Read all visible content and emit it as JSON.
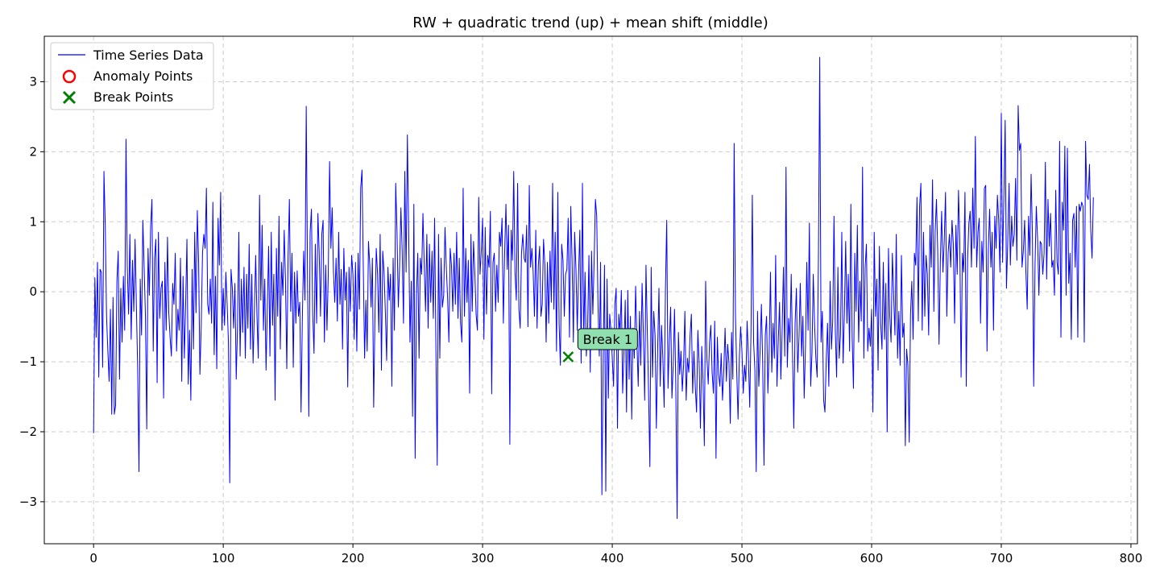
{
  "chart_data": {
    "type": "line",
    "title": "RW + quadratic trend (up) + mean shift (middle)",
    "xlabel": "",
    "ylabel": "",
    "xlim": [
      -38,
      805
    ],
    "ylim": [
      -3.6,
      3.65
    ],
    "xticks": [
      0,
      100,
      200,
      300,
      400,
      500,
      600,
      700,
      800
    ],
    "yticks": [
      -3,
      -2,
      -1,
      0,
      1,
      2,
      3
    ],
    "grid": true,
    "legend_position": "top-left",
    "series": [
      {
        "name": "Time Series Data",
        "color": "#0000ff",
        "x_start": 0,
        "x_step": 1,
        "values": [
          -2.02,
          0.2,
          -0.65,
          0.42,
          -1.22,
          0.32,
          0.28,
          -1.08,
          1.72,
          0.95,
          -0.35,
          -0.85,
          -1.28,
          -0.25,
          -1.75,
          -0.08,
          -1.75,
          -1.62,
          0.15,
          0.58,
          -1.25,
          0.05,
          -0.72,
          0.22,
          -0.55,
          2.18,
          0.35,
          -0.32,
          0.82,
          -0.68,
          0.45,
          -0.28,
          0.75,
          -0.2,
          -1.1,
          -2.57,
          0.18,
          -0.62,
          1.02,
          0.34,
          -0.35,
          -1.96,
          0.62,
          -0.05,
          0.92,
          1.32,
          -0.85,
          0.48,
          0.75,
          -1.3,
          0.85,
          -0.38,
          0.05,
          0.15,
          -1.52,
          0.42,
          -0.55,
          0.78,
          -0.3,
          -0.65,
          -0.92,
          0.12,
          -0.18,
          0.55,
          -0.85,
          -0.25,
          -0.55,
          0.48,
          -1.28,
          0.22,
          -0.95,
          -0.18,
          0.75,
          -1.32,
          -0.55,
          -1.55,
          0.32,
          -0.82,
          0.85,
          -0.3,
          1.16,
          0.42,
          -1.18,
          -0.5,
          0.55,
          0.82,
          0.62,
          1.48,
          -0.18,
          -0.32,
          0.18,
          -0.45,
          1.28,
          -0.9,
          0.22,
          -1.1,
          1.05,
          0.38,
          1.42,
          -0.55,
          0.05,
          -0.48,
          0.28,
          -0.18,
          -0.72,
          -2.73,
          0.32,
          0.05,
          -0.52,
          0.12,
          -1.25,
          -0.48,
          0.85,
          -0.92,
          0.18,
          -0.58,
          0.35,
          -0.95,
          0.25,
          -0.52,
          0.68,
          -0.82,
          0.25,
          -1.02,
          -0.28,
          0.52,
          -0.35,
          -0.95,
          1.38,
          -0.12,
          0.95,
          -0.55,
          0.18,
          -1.12,
          -0.22,
          0.65,
          -0.92,
          0.85,
          -0.48,
          0.25,
          -1.55,
          0.62,
          -0.35,
          1.08,
          -0.82,
          0.42,
          -0.05,
          0.88,
          0.15,
          -1.1,
          0.5,
          1.32,
          -0.28,
          0.55,
          -1.08,
          0.28,
          -0.45,
          0.3,
          -0.35,
          -0.15,
          -1.72,
          -0.38,
          0.58,
          -0.12,
          2.65,
          0.2,
          -1.78,
          0.85,
          1.18,
          -0.32,
          -0.88,
          0.68,
          -0.45,
          1.12,
          0.55,
          -0.35,
          0.82,
          1.02,
          -0.72,
          0.38,
          -0.55,
          0.25,
          1.86,
          0.62,
          1.2,
          0.28,
          -0.15,
          0.48,
          -0.42,
          0.85,
          -0.18,
          0.32,
          -0.82,
          0.62,
          -0.12,
          0.28,
          -1.36,
          0.35,
          -0.28,
          0.52,
          0.25,
          -0.68,
          0.42,
          -0.85,
          0.55,
          -0.25,
          1.48,
          1.74,
          0.35,
          -0.95,
          -0.12,
          -0.85,
          0.72,
          0.38,
          -0.22,
          0.48,
          -1.65,
          -0.35,
          0.62,
          0.25,
          -0.58,
          0.82,
          -1.12,
          0.58,
          0.28,
          -0.28,
          -0.98,
          0.35,
          -0.12,
          0.25,
          -1.35,
          0.48,
          -0.55,
          1.55,
          0.85,
          -0.22,
          0.38,
          1.2,
          0.58,
          -0.45,
          1.72,
          0.28,
          2.24,
          0.85,
          -0.72,
          0.15,
          -1.78,
          1.25,
          -2.38,
          -0.05,
          0.55,
          -0.95,
          0.48,
          0.25,
          1.12,
          0.38,
          -0.28,
          0.82,
          -0.52,
          0.68,
          -0.15,
          0.58,
          -0.38,
          1.05,
          -0.82,
          -2.48,
          0.82,
          -0.95,
          0.48,
          -0.22,
          -0.05,
          0.92,
          0.35,
          -0.08,
          -0.72,
          0.62,
          0.38,
          -0.28,
          0.55,
          -0.18,
          0.85,
          -0.38,
          0.48,
          -0.45,
          -0.72,
          1.48,
          -0.35,
          0.62,
          -0.15,
          0.45,
          -1.45,
          0.82,
          -0.28,
          0.72,
          0.28,
          -0.32,
          -0.55,
          1.35,
          0.25,
          0.58,
          1.05,
          -0.68,
          0.92,
          -0.32,
          0.52,
          0.35,
          1.15,
          -1.46,
          0.42,
          0.55,
          -0.28,
          0.38,
          -0.15,
          0.85,
          0.65,
          1.05,
          -0.45,
          0.55,
          1.25,
          0.32,
          0.95,
          -2.18,
          0.88,
          0.45,
          1.72,
          0.28,
          -0.12,
          1.55,
          -0.25,
          -0.52,
          0.55,
          0.82,
          0.48,
          0.42,
          0.95,
          -0.5,
          1.52,
          0.35,
          0.62,
          0.28,
          -0.35,
          0.88,
          -0.52,
          0.38,
          0.65,
          -0.35,
          -0.18,
          0.75,
          0.38,
          -0.72,
          0.42,
          -0.45,
          0.58,
          -0.15,
          1.55,
          -0.25,
          0.85,
          -0.85,
          1.42,
          -0.45,
          -1.05,
          0.68,
          0.45,
          -0.35,
          0.25,
          0.32,
          1.05,
          -0.65,
          1.22,
          0.45,
          -0.72,
          0.85,
          0.32,
          -0.55,
          0.25,
          0.88,
          -1.02,
          1.55,
          -0.68,
          0.28,
          -0.92,
          -0.5,
          0.52,
          -1.15,
          0.58,
          -0.32,
          0.42,
          1.32,
          1.08,
          -0.2,
          -0.92,
          0.42,
          -2.9,
          -0.95,
          0.38,
          -2.85,
          0.18,
          -1.52,
          -0.32,
          -0.55,
          -0.95,
          -1.35,
          -0.18,
          0.05,
          -1.95,
          -0.32,
          -0.58,
          0.02,
          -1.45,
          -0.85,
          -0.12,
          -1.72,
          0.02,
          -1.25,
          -0.35,
          -1.82,
          -0.52,
          -0.95,
          0.08,
          -0.72,
          -1.35,
          -0.28,
          -1.05,
          0.12,
          -0.62,
          -1.55,
          0.38,
          -0.55,
          -1.45,
          -2.5,
          0.35,
          -1.22,
          -0.28,
          -0.62,
          -1.95,
          -0.82,
          0.05,
          -1.35,
          -0.48,
          -0.95,
          -1.65,
          0.02,
          1.02,
          -1.38,
          -0.72,
          -0.22,
          -1.52,
          -1.05,
          -0.25,
          -1.35,
          -3.24,
          -0.58,
          -1.18,
          -0.85,
          -1.42,
          -1.05,
          -0.28,
          -1.55,
          -0.95,
          -1.15,
          -0.62,
          -0.32,
          -1.45,
          -0.85,
          -1.35,
          -1.72,
          -0.55,
          -1.02,
          -1.95,
          -0.78,
          -1.28,
          -2.2,
          0.15,
          -0.95,
          -1.32,
          -0.72,
          -0.48,
          -1.15,
          -1.45,
          -0.42,
          -2.38,
          -0.65,
          -1.18,
          -1.35,
          -0.88,
          -1.55,
          -1.12,
          -0.52,
          -1.28,
          -0.75,
          -1.02,
          -1.88,
          -0.58,
          -1.25,
          2.12,
          -0.32,
          -1.15,
          -1.82,
          -0.95,
          -0.5,
          -0.85,
          -1.45,
          -1.05,
          -1.28,
          -0.42,
          -0.95,
          -1.65,
          -0.55,
          1.38,
          -0.72,
          -1.12,
          -2.57,
          -0.28,
          -1.35,
          -0.85,
          -0.18,
          -1.02,
          -2.48,
          -0.62,
          -0.35,
          -1.45,
          -0.82,
          0.28,
          -1.15,
          -0.45,
          -0.95,
          0.52,
          -1.35,
          -0.72,
          -0.15,
          -1.25,
          -0.55,
          0.35,
          -0.92,
          1.78,
          -1.08,
          -0.38,
          -0.72,
          0.25,
          -0.85,
          -1.95,
          -0.45,
          0.05,
          -1.15,
          -0.65,
          0.12,
          -0.92,
          -0.35,
          -1.52,
          -0.78,
          0.42,
          -0.55,
          0.98,
          -1.35,
          -0.88,
          0.25,
          -0.45,
          -0.95,
          -1.22,
          0.52,
          3.35,
          -0.72,
          -0.28,
          -1.55,
          -1.72,
          -0.98,
          -0.45,
          -1.35,
          0.15,
          -0.82,
          -0.42,
          1.08,
          -0.55,
          -1.22,
          0.35,
          -0.95,
          -0.62,
          0.85,
          -1.02,
          -0.32,
          0.72,
          -0.45,
          0.25,
          -0.85,
          1.25,
          -0.65,
          -1.38,
          0.55,
          -0.28,
          0.95,
          -0.72,
          0.15,
          -0.42,
          1.78,
          -0.95,
          0.35,
          0.68,
          -0.85,
          -0.52,
          -0.78,
          -0.25,
          -1.72,
          0.85,
          -0.35,
          0.18,
          -1.12,
          0.65,
          -0.45,
          -0.82,
          0.42,
          -0.68,
          0.12,
          -2.0,
          0.62,
          -0.35,
          -0.72,
          0.55,
          -0.05,
          -0.62,
          0.82,
          -0.95,
          -0.28,
          -1.05,
          0.52,
          -0.65,
          -0.45,
          -2.2,
          -0.82,
          -1.05,
          -2.15,
          -0.32,
          0.15,
          -0.68,
          0.55,
          0.38,
          1.35,
          -0.42,
          1.22,
          1.55,
          -0.55,
          0.85,
          -0.35,
          0.52,
          0.25,
          -0.62,
          0.95,
          0.35,
          1.6,
          -0.28,
          0.85,
          1.32,
          0.55,
          -0.75,
          0.42,
          1.15,
          0.28,
          0.72,
          1.42,
          -0.35,
          0.55,
          0.82,
          0.35,
          1.02,
          0.68,
          -0.45,
          0.95,
          0.25,
          1.45,
          0.72,
          -1.22,
          0.55,
          0.28,
          1.42,
          -1.35,
          0.45,
          0.98,
          1.15,
          0.35,
          1.48,
          0.62,
          2.22,
          0.35,
          0.85,
          1.05,
          -0.45,
          0.72,
          0.28,
          1.48,
          1.52,
          -0.85,
          0.58,
          1.18,
          0.35,
          0.85,
          -0.55,
          1.08,
          0.62,
          1.38,
          1.02,
          0.28,
          2.55,
          0.42,
          1.35,
          2.45,
          0.05,
          0.72,
          1.55,
          0.38,
          1.08,
          0.65,
          0.82,
          1.62,
          0.45,
          2.66,
          2.02,
          2.12,
          0.35,
          0.58,
          1.02,
          0.28,
          -0.25,
          1.08,
          0.52,
          1.68,
          0.82,
          -1.35,
          0.35,
          1.22,
          0.75,
          -0.05,
          0.72,
          0.68,
          0.25,
          0.55,
          1.85,
          0.18,
          1.32,
          0.65,
          1.12,
          0.35,
          0.45,
          -0.05,
          1.45,
          0.42,
          0.25,
          2.15,
          -0.65,
          1.28,
          0.88,
          2.08,
          -0.05,
          2.05,
          0.12,
          0.55,
          -0.68,
          1.02,
          1.12,
          0.35,
          1.22,
          -0.65,
          1.25,
          1.15,
          1.28,
          1.22,
          -0.72,
          2.15,
          1.38,
          1.32,
          1.82,
          0.88,
          0.48,
          1.35
        ]
      }
    ],
    "anomaly_points": {
      "name": "Anomaly Points",
      "color": "#ff0000",
      "points": []
    },
    "break_points": {
      "name": "Break Points",
      "color": "#008000",
      "points": [
        {
          "x": 366,
          "y": -0.93,
          "label": "Break 1"
        }
      ]
    },
    "colors": {
      "break_box_fill": "#90dfae",
      "grid": "#cccccc"
    }
  }
}
